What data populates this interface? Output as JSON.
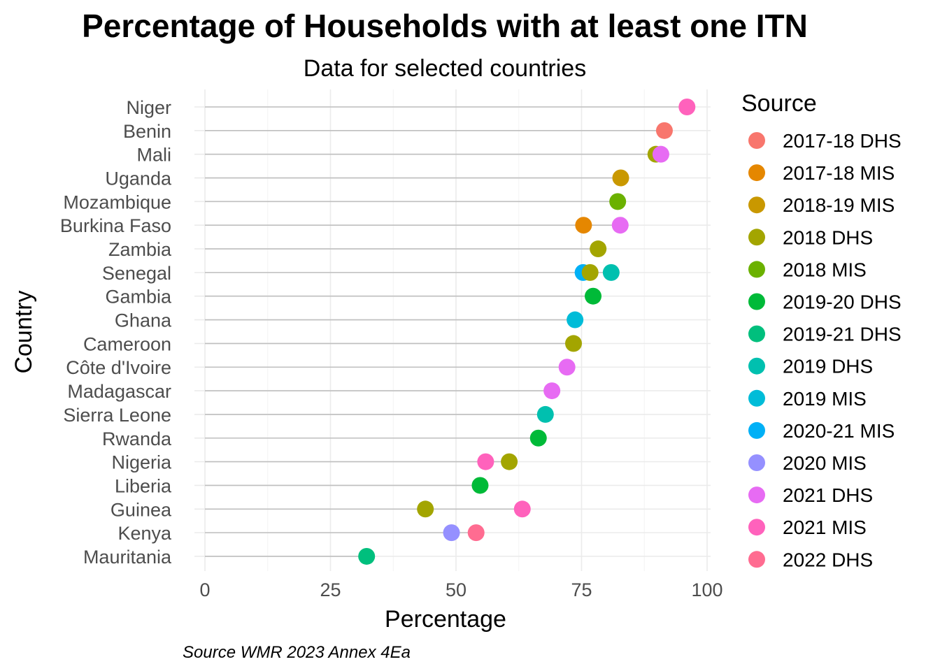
{
  "chart_data": {
    "type": "scatter",
    "title": "Percentage of Households with at least one ITN",
    "subtitle": "Data for selected countries",
    "xlabel": "Percentage",
    "ylabel": "Country",
    "caption": "Source WMR 2023 Annex 4Ea",
    "xlim": [
      0,
      100
    ],
    "xticks": [
      0,
      25,
      50,
      75,
      100
    ],
    "grid": true,
    "legend": {
      "title": "Source",
      "placement": "right",
      "entries": [
        {
          "name": "2017-18 DHS",
          "color": "#F8766D"
        },
        {
          "name": "2017-18 MIS",
          "color": "#E58700"
        },
        {
          "name": "2018-19 MIS",
          "color": "#C99800"
        },
        {
          "name": "2018 DHS",
          "color": "#A3A500"
        },
        {
          "name": "2018 MIS",
          "color": "#6BB100"
        },
        {
          "name": "2019-20 DHS",
          "color": "#00BA38"
        },
        {
          "name": "2019-21 DHS",
          "color": "#00BF7D"
        },
        {
          "name": "2019 DHS",
          "color": "#00C0AF"
        },
        {
          "name": "2019 MIS",
          "color": "#00BCD8"
        },
        {
          "name": "2020-21 MIS",
          "color": "#00B0F6"
        },
        {
          "name": "2020 MIS",
          "color": "#9590FF"
        },
        {
          "name": "2021 DHS",
          "color": "#E76BF3"
        },
        {
          "name": "2021 MIS",
          "color": "#FF62BC"
        },
        {
          "name": "2022 DHS",
          "color": "#FF6C91"
        }
      ]
    },
    "categories": [
      "Niger",
      "Benin",
      "Mali",
      "Uganda",
      "Mozambique",
      "Burkina Faso",
      "Zambia",
      "Senegal",
      "Gambia",
      "Ghana",
      "Cameroon",
      "Côte d'Ivoire",
      "Madagascar",
      "Sierra Leone",
      "Rwanda",
      "Nigeria",
      "Liberia",
      "Guinea",
      "Kenya",
      "Mauritania"
    ],
    "points": [
      {
        "country": "Niger",
        "value": 96,
        "source": "2021 MIS"
      },
      {
        "country": "Benin",
        "value": 91.5,
        "source": "2017-18 DHS"
      },
      {
        "country": "Mali",
        "value": 89.8,
        "source": "2018 DHS"
      },
      {
        "country": "Mali",
        "value": 90.8,
        "source": "2021 DHS"
      },
      {
        "country": "Uganda",
        "value": 82.8,
        "source": "2018-19 MIS"
      },
      {
        "country": "Mozambique",
        "value": 82.2,
        "source": "2018 MIS"
      },
      {
        "country": "Burkina Faso",
        "value": 75.4,
        "source": "2017-18 MIS"
      },
      {
        "country": "Burkina Faso",
        "value": 82.7,
        "source": "2021 DHS"
      },
      {
        "country": "Zambia",
        "value": 78.3,
        "source": "2018 DHS"
      },
      {
        "country": "Senegal",
        "value": 75.3,
        "source": "2020-21 MIS"
      },
      {
        "country": "Senegal",
        "value": 76.7,
        "source": "2018 DHS"
      },
      {
        "country": "Senegal",
        "value": 80.9,
        "source": "2019 DHS"
      },
      {
        "country": "Gambia",
        "value": 77.3,
        "source": "2019-20 DHS"
      },
      {
        "country": "Ghana",
        "value": 73.7,
        "source": "2019 MIS"
      },
      {
        "country": "Cameroon",
        "value": 73.4,
        "source": "2018 DHS"
      },
      {
        "country": "Côte d'Ivoire",
        "value": 72.1,
        "source": "2021 DHS"
      },
      {
        "country": "Madagascar",
        "value": 69.1,
        "source": "2021 DHS"
      },
      {
        "country": "Sierra Leone",
        "value": 67.8,
        "source": "2019 DHS"
      },
      {
        "country": "Rwanda",
        "value": 66.4,
        "source": "2019-20 DHS"
      },
      {
        "country": "Nigeria",
        "value": 55.9,
        "source": "2021 MIS"
      },
      {
        "country": "Nigeria",
        "value": 60.6,
        "source": "2018 DHS"
      },
      {
        "country": "Liberia",
        "value": 54.8,
        "source": "2019-20 DHS"
      },
      {
        "country": "Guinea",
        "value": 43.9,
        "source": "2018 DHS"
      },
      {
        "country": "Guinea",
        "value": 63.2,
        "source": "2021 MIS"
      },
      {
        "country": "Kenya",
        "value": 49.1,
        "source": "2020 MIS"
      },
      {
        "country": "Kenya",
        "value": 54.0,
        "source": "2022 DHS"
      },
      {
        "country": "Mauritania",
        "value": 32.2,
        "source": "2019-21 DHS"
      }
    ]
  }
}
